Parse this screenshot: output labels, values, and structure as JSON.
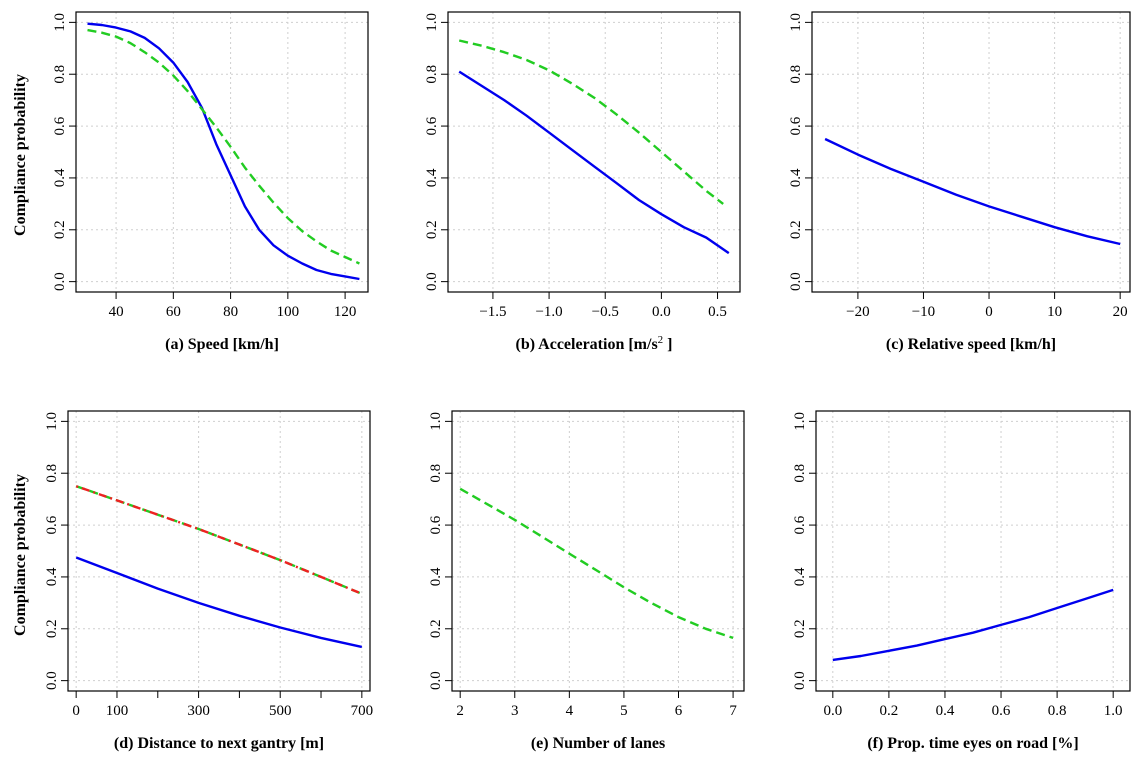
{
  "y_label": "Compliance probability",
  "colors": {
    "solid": "#0000ee",
    "dashed": "#22cc22",
    "dotdash": "#ee2222"
  },
  "chart_data": [
    {
      "type": "line",
      "xlabel": "(a) Speed [km/h]",
      "xlim": [
        26,
        128
      ],
      "ylim": [
        -0.04,
        1.04
      ],
      "xticks": [
        40,
        60,
        80,
        100,
        120
      ],
      "xtick_labels": [
        "40",
        "60",
        "80",
        "100",
        "120"
      ],
      "yticks": [
        0,
        0.2,
        0.4,
        0.6,
        0.8,
        1.0
      ],
      "ytick_labels": [
        "0.0",
        "0.2",
        "0.4",
        "0.6",
        "0.8",
        "1.0"
      ],
      "grid": true,
      "series": [
        {
          "style": "solid",
          "color": "#0000ee",
          "x": [
            30,
            35,
            40,
            45,
            50,
            55,
            60,
            65,
            70,
            75,
            80,
            85,
            90,
            95,
            100,
            105,
            110,
            115,
            120,
            125
          ],
          "y": [
            0.995,
            0.99,
            0.98,
            0.965,
            0.94,
            0.9,
            0.845,
            0.77,
            0.67,
            0.53,
            0.41,
            0.29,
            0.2,
            0.14,
            0.1,
            0.07,
            0.045,
            0.03,
            0.02,
            0.01
          ]
        },
        {
          "style": "dashed",
          "color": "#22cc22",
          "x": [
            30,
            35,
            40,
            45,
            50,
            55,
            60,
            65,
            70,
            75,
            80,
            85,
            90,
            95,
            100,
            105,
            110,
            115,
            120,
            125
          ],
          "y": [
            0.97,
            0.96,
            0.945,
            0.92,
            0.885,
            0.845,
            0.795,
            0.735,
            0.665,
            0.595,
            0.52,
            0.44,
            0.37,
            0.305,
            0.245,
            0.195,
            0.155,
            0.12,
            0.095,
            0.07
          ]
        }
      ]
    },
    {
      "type": "line",
      "xlabel": "(b) Acceleration [m/s",
      "xlabel_sup": "2",
      "xlabel_after": " ]",
      "xlim": [
        -1.9,
        0.7
      ],
      "ylim": [
        -0.04,
        1.04
      ],
      "xticks": [
        -1.5,
        -1.0,
        -0.5,
        0.0,
        0.5
      ],
      "xtick_labels": [
        "−1.5",
        "−1.0",
        "−0.5",
        "0.0",
        "0.5"
      ],
      "yticks": [
        0,
        0.2,
        0.4,
        0.6,
        0.8,
        1.0
      ],
      "ytick_labels": [
        "0.0",
        "0.2",
        "0.4",
        "0.6",
        "0.8",
        "1.0"
      ],
      "grid": true,
      "series": [
        {
          "style": "solid",
          "color": "#0000ee",
          "x": [
            -1.8,
            -1.6,
            -1.4,
            -1.2,
            -1.0,
            -0.8,
            -0.6,
            -0.4,
            -0.2,
            0.0,
            0.2,
            0.4,
            0.6
          ],
          "y": [
            0.81,
            0.755,
            0.7,
            0.64,
            0.575,
            0.51,
            0.445,
            0.38,
            0.315,
            0.26,
            0.21,
            0.17,
            0.11
          ]
        },
        {
          "style": "dashed",
          "color": "#22cc22",
          "x": [
            -1.8,
            -1.6,
            -1.4,
            -1.2,
            -1.0,
            -0.8,
            -0.6,
            -0.4,
            -0.2,
            0.0,
            0.2,
            0.4,
            0.55
          ],
          "y": [
            0.93,
            0.91,
            0.885,
            0.855,
            0.815,
            0.765,
            0.71,
            0.645,
            0.575,
            0.5,
            0.425,
            0.35,
            0.3
          ]
        }
      ]
    },
    {
      "type": "line",
      "xlabel": "(c) Relative speed [km/h]",
      "xlim": [
        -27,
        21.5
      ],
      "ylim": [
        -0.04,
        1.04
      ],
      "xticks": [
        -20,
        -10,
        0,
        10,
        20
      ],
      "xtick_labels": [
        "−20",
        "−10",
        "0",
        "10",
        "20"
      ],
      "yticks": [
        0,
        0.2,
        0.4,
        0.6,
        0.8,
        1.0
      ],
      "ytick_labels": [
        "0.0",
        "0.2",
        "0.4",
        "0.6",
        "0.8",
        "1.0"
      ],
      "grid": true,
      "series": [
        {
          "style": "solid",
          "color": "#0000ee",
          "x": [
            -25,
            -20,
            -15,
            -10,
            -5,
            0,
            5,
            10,
            15,
            20
          ],
          "y": [
            0.55,
            0.49,
            0.435,
            0.385,
            0.335,
            0.29,
            0.25,
            0.21,
            0.175,
            0.145
          ]
        }
      ]
    },
    {
      "type": "line",
      "xlabel": "(d) Distance to next gantry [m]",
      "xlim": [
        -20,
        720
      ],
      "ylim": [
        -0.04,
        1.04
      ],
      "xticks": [
        0,
        100,
        300,
        500,
        700
      ],
      "xtick_labels": [
        "0",
        "100",
        "300",
        "500",
        "700"
      ],
      "minor_xticks": [
        200,
        400,
        600
      ],
      "yticks": [
        0,
        0.2,
        0.4,
        0.6,
        0.8,
        1.0
      ],
      "ytick_labels": [
        "0.0",
        "0.2",
        "0.4",
        "0.6",
        "0.8",
        "1.0"
      ],
      "grid": true,
      "series": [
        {
          "style": "solid",
          "color": "#0000ee",
          "x": [
            0,
            100,
            200,
            300,
            400,
            500,
            600,
            700
          ],
          "y": [
            0.475,
            0.415,
            0.355,
            0.3,
            0.25,
            0.205,
            0.165,
            0.13
          ]
        },
        {
          "style": "dashed",
          "color": "#22cc22",
          "x": [
            0,
            100,
            200,
            300,
            400,
            500,
            600,
            700
          ],
          "y": [
            0.75,
            0.695,
            0.64,
            0.585,
            0.525,
            0.465,
            0.4,
            0.335
          ]
        },
        {
          "style": "dotdash",
          "color": "#ee2222",
          "x": [
            0,
            100,
            200,
            300,
            400,
            500,
            600,
            700
          ],
          "y": [
            0.75,
            0.695,
            0.64,
            0.585,
            0.525,
            0.465,
            0.4,
            0.335
          ]
        }
      ]
    },
    {
      "type": "line",
      "xlabel": "(e) Number of lanes",
      "xlim": [
        1.85,
        7.2
      ],
      "ylim": [
        -0.04,
        1.04
      ],
      "xticks": [
        2,
        3,
        4,
        5,
        6,
        7
      ],
      "xtick_labels": [
        "2",
        "3",
        "4",
        "5",
        "6",
        "7"
      ],
      "yticks": [
        0,
        0.2,
        0.4,
        0.6,
        0.8,
        1.0
      ],
      "ytick_labels": [
        "0.0",
        "0.2",
        "0.4",
        "0.6",
        "0.8",
        "1.0"
      ],
      "grid": true,
      "series": [
        {
          "style": "dashed",
          "color": "#22cc22",
          "x": [
            2,
            2.5,
            3,
            3.5,
            4,
            4.5,
            5,
            5.5,
            6,
            6.5,
            7
          ],
          "y": [
            0.74,
            0.68,
            0.62,
            0.555,
            0.49,
            0.425,
            0.36,
            0.3,
            0.245,
            0.2,
            0.165
          ]
        }
      ]
    },
    {
      "type": "line",
      "xlabel": "(f) Prop. time eyes on road [%]",
      "xlim": [
        -0.06,
        1.06
      ],
      "ylim": [
        -0.04,
        1.04
      ],
      "xticks": [
        0,
        0.2,
        0.4,
        0.6,
        0.8,
        1.0
      ],
      "xtick_labels": [
        "0.0",
        "0.2",
        "0.4",
        "0.6",
        "0.8",
        "1.0"
      ],
      "yticks": [
        0,
        0.2,
        0.4,
        0.6,
        0.8,
        1.0
      ],
      "ytick_labels": [
        "0.0",
        "0.2",
        "0.4",
        "0.6",
        "0.8",
        "1.0"
      ],
      "grid": true,
      "series": [
        {
          "style": "solid",
          "color": "#0000ee",
          "x": [
            0,
            0.1,
            0.2,
            0.3,
            0.4,
            0.5,
            0.6,
            0.7,
            0.8,
            0.9,
            1.0
          ],
          "y": [
            0.08,
            0.095,
            0.115,
            0.135,
            0.16,
            0.185,
            0.215,
            0.245,
            0.28,
            0.315,
            0.35
          ]
        }
      ]
    }
  ]
}
